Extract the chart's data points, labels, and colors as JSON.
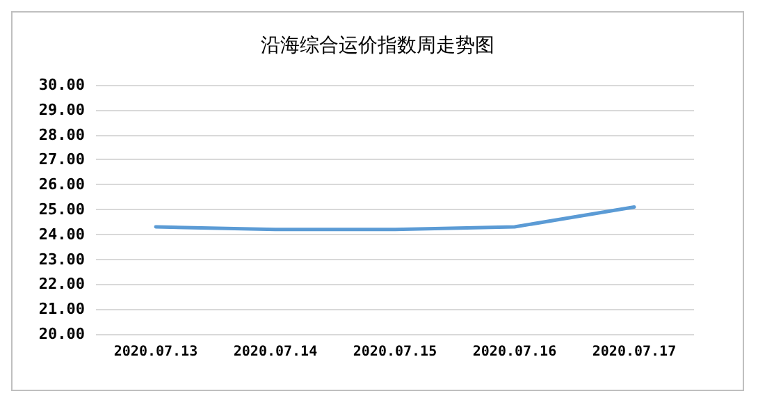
{
  "chart_data": {
    "type": "line",
    "title": "沿海综合运价指数周走势图",
    "categories": [
      "2020.07.13",
      "2020.07.14",
      "2020.07.15",
      "2020.07.16",
      "2020.07.17"
    ],
    "series": [
      {
        "color": "#5b9bd5",
        "values": [
          24.3,
          24.2,
          24.2,
          24.3,
          25.1
        ]
      }
    ],
    "ylim": [
      20,
      30
    ],
    "yticks": [
      {
        "value": 20,
        "label": "20.00"
      },
      {
        "value": 21,
        "label": "21.00"
      },
      {
        "value": 22,
        "label": "22.00"
      },
      {
        "value": 23,
        "label": "23.00"
      },
      {
        "value": 24,
        "label": "24.00"
      },
      {
        "value": 25,
        "label": "25.00"
      },
      {
        "value": 26,
        "label": "26.00"
      },
      {
        "value": 27,
        "label": "27.00"
      },
      {
        "value": 28,
        "label": "28.00"
      },
      {
        "value": 29,
        "label": "29.00"
      },
      {
        "value": 30,
        "label": "30.00"
      }
    ],
    "grid": "y",
    "marker": "none",
    "line_style": "solid"
  }
}
